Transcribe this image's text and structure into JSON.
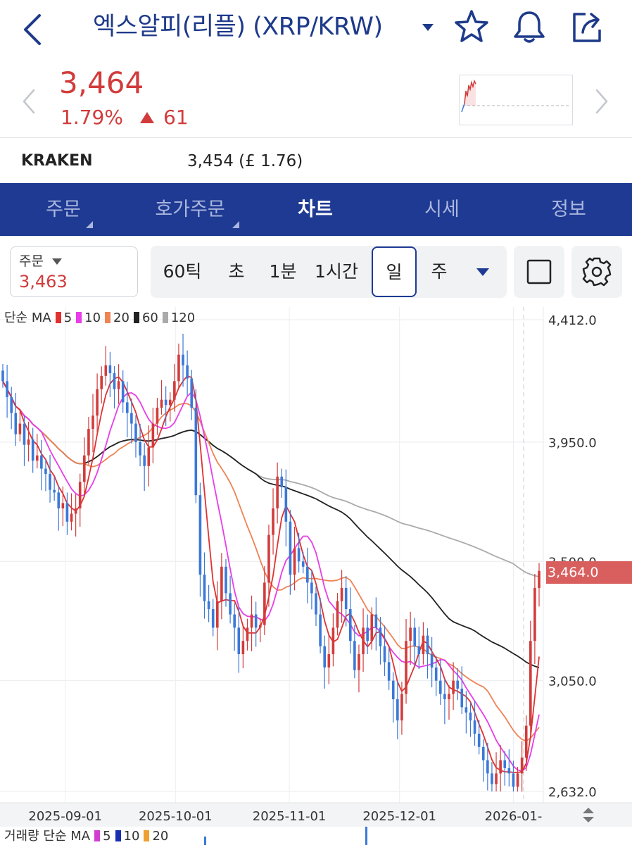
{
  "header": {
    "title": "엑스알피(리플) (XRP/KRW)"
  },
  "quote": {
    "price": "3,464",
    "change_pct": "1.79%",
    "change": "61"
  },
  "exchange": {
    "name": "KRAKEN",
    "price": "3,454 (£ 1.76)"
  },
  "nav": {
    "tabs": [
      "주문",
      "호가주문",
      "차트",
      "시세",
      "정보"
    ],
    "active": "차트"
  },
  "order": {
    "label": "주문",
    "value": "3,463"
  },
  "periods": [
    "60틱",
    "초",
    "1분",
    "1시간",
    "일",
    "주"
  ],
  "selected_period": "일",
  "legend": {
    "label": "단순 MA",
    "items": [
      {
        "label": "5",
        "color": "#e03131"
      },
      {
        "label": "10",
        "color": "#e83de8"
      },
      {
        "label": "20",
        "color": "#ef8354"
      },
      {
        "label": "60",
        "color": "#222222"
      },
      {
        "label": "120",
        "color": "#aaaaaa"
      }
    ]
  },
  "volume_legend": {
    "label": "거래량 단순 MA",
    "items": [
      {
        "label": "5",
        "color": "#d13fd1"
      },
      {
        "label": "10",
        "color": "#1a2fb0"
      },
      {
        "label": "20",
        "color": "#f0a030"
      }
    ]
  },
  "colors": {
    "up": "#d23b3b",
    "down": "#3b78d8",
    "brand": "#1f3a93"
  },
  "chart_data": {
    "type": "candlestick",
    "y_axis_labels": [
      "4,412.0",
      "3,950.0",
      "3,500.0",
      "3,050.0",
      "2,632.0"
    ],
    "x_axis_labels": [
      "2025-09-01",
      "2025-10-01",
      "2025-11-01",
      "2025-12-01",
      "2026-01-"
    ],
    "current_price_label": "3,464.0",
    "ylim": [
      2632,
      4412
    ],
    "x_range": [
      "2025-08-15",
      "2026-01-08"
    ],
    "close": [
      4180,
      4120,
      4060,
      3980,
      4020,
      3940,
      3960,
      3880,
      3900,
      3850,
      3830,
      3770,
      3760,
      3700,
      3720,
      3650,
      3680,
      3700,
      3800,
      3900,
      4000,
      4050,
      4150,
      4200,
      4240,
      4210,
      4150,
      4180,
      4100,
      4060,
      4020,
      3950,
      3900,
      3860,
      3930,
      4020,
      4080,
      4110,
      4090,
      4110,
      4180,
      4280,
      4240,
      4190,
      4080,
      3750,
      3450,
      3350,
      3320,
      3250,
      3350,
      3480,
      3380,
      3300,
      3250,
      3150,
      3200,
      3250,
      3300,
      3250,
      3260,
      3420,
      3600,
      3700,
      3820,
      3780,
      3650,
      3450,
      3550,
      3500,
      3480,
      3420,
      3380,
      3300,
      3180,
      3100,
      3150,
      3250,
      3350,
      3400,
      3320,
      3200,
      3090,
      3150,
      3250,
      3200,
      3300,
      3250,
      3180,
      3120,
      3050,
      2980,
      2900,
      3000,
      3200,
      3250,
      3180,
      3150,
      3220,
      3150,
      3100,
      3050,
      3000,
      2980,
      3000,
      3050,
      3020,
      2950,
      2930,
      2900,
      2850,
      2800,
      2750,
      2700,
      2660,
      2700,
      2750,
      2720,
      2700,
      2650,
      2700,
      2760,
      2880,
      3200,
      3400,
      3464
    ]
  }
}
